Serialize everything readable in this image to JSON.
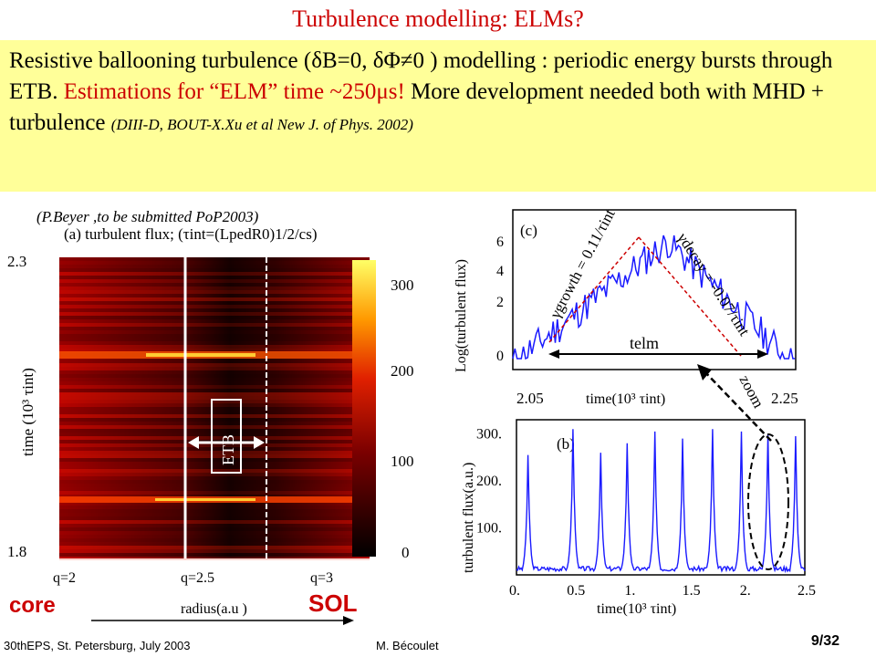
{
  "title": "Turbulence modelling: ELMs?",
  "box": {
    "t1": "Resistive ballooning turbulence (",
    "t2": "δB=0, δΦ≠0",
    "t3": " ) modelling ",
    "t4": ": periodic energy bursts through ETB. ",
    "t5": "Estimations for “ELM” time ~250μs!",
    "t6": " More development needed both with MHD + turbulence ",
    "t7": "(DIII-D, BOUT-X.Xu et al New J. of Phys. 2002",
    "t8": ")"
  },
  "ref": "(P.Beyer ,to be submitted PoP2003)",
  "panel_a": {
    "label": "(a) turbulent flux; (τint=(LpedR0)1/2/cs)",
    "ylabel": "time (10³ τint)",
    "yticks": [
      "2.3",
      "1.8"
    ],
    "cbar_ticks": [
      "300",
      "200",
      "100",
      "0"
    ],
    "qlabels": [
      "q=2",
      "q=2.5",
      "q=3"
    ],
    "xlabel": "radius(a.u )",
    "etb": "ETB"
  },
  "panel_c": {
    "label": "(c)",
    "ylabel": "Log(turbulent flux)",
    "yticks": [
      "6",
      "4",
      "2",
      "0"
    ],
    "xticks": [
      "2.05",
      "2.25"
    ],
    "xlabel": "time(10³ τint)",
    "growth": "γgrowth = 0.11/τint",
    "decay": "γdecay = -0.07/τint",
    "telm": "telm"
  },
  "panel_b": {
    "label": "(b)",
    "ylabel": "turbulent flux(a.u.)",
    "yticks": [
      "300.",
      "200.",
      "100."
    ],
    "xticks": [
      "0.",
      "0.5",
      "1.",
      "1.5",
      "2.",
      "2.5"
    ],
    "xlabel": "time(10³ τint)"
  },
  "zoom": "zoom",
  "core": "core",
  "sol": "SOL",
  "footer": {
    "left": "30thEPS, St. Petersburg, July 2003",
    "center": "M. Bécoulet",
    "right": "9/32"
  },
  "colors": {
    "accent": "#cc0000",
    "box": "#ffff99",
    "series": "#1a1aff"
  },
  "chart_data": [
    {
      "type": "line",
      "xlabel": "time(10³ τint)",
      "ylabel": "turbulent flux(a.u.)",
      "xlim": [
        0,
        2.5
      ],
      "ylim": [
        0,
        330
      ],
      "x": [
        0.1,
        0.49,
        0.73,
        0.96,
        1.2,
        1.44,
        1.7,
        1.95,
        2.18,
        2.42
      ],
      "values": [
        255,
        310,
        260,
        280,
        305,
        290,
        310,
        305,
        300,
        295
      ]
    },
    {
      "type": "line",
      "xlabel": "time(10³ τint)",
      "ylabel": "Log(turbulent flux)",
      "xlim": [
        2.05,
        2.25
      ],
      "ylim": [
        0,
        6
      ],
      "x": [
        2.06,
        2.1,
        2.16,
        2.2,
        2.24
      ],
      "values": [
        0.4,
        3.0,
        5.8,
        2.5,
        0.3
      ]
    }
  ]
}
